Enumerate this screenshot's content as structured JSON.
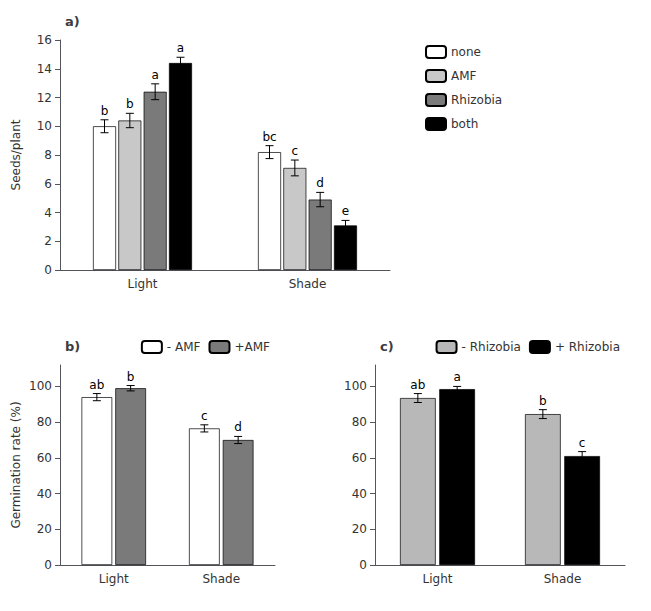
{
  "chart_data": [
    {
      "type": "bar",
      "title": "a)",
      "categories": [
        "Light",
        "Shade"
      ],
      "ylabel": "Seeds/plant",
      "ylim": [
        0,
        16
      ],
      "yticks": [
        0,
        2,
        4,
        6,
        8,
        10,
        12,
        14,
        16
      ],
      "grid": false,
      "legend": "right",
      "series": [
        {
          "name": "none",
          "color": "#ffffff",
          "values": [
            10.0,
            8.2
          ],
          "errors": [
            0.45,
            0.45
          ],
          "letters": [
            "b",
            "bc"
          ]
        },
        {
          "name": "AMF",
          "color": "#c8c8c8",
          "values": [
            10.4,
            7.1
          ],
          "errors": [
            0.5,
            0.55
          ],
          "letters": [
            "b",
            "c"
          ]
        },
        {
          "name": "Rhizobia",
          "color": "#7a7a7a",
          "values": [
            12.4,
            4.9
          ],
          "errors": [
            0.55,
            0.5
          ],
          "letters": [
            "a",
            "d"
          ]
        },
        {
          "name": "both",
          "color": "#000000",
          "values": [
            14.4,
            3.1
          ],
          "errors": [
            0.4,
            0.35
          ],
          "letters": [
            "a",
            "e"
          ]
        }
      ]
    },
    {
      "type": "bar",
      "title": "b)",
      "categories": [
        "Light",
        "Shade"
      ],
      "ylabel": "Germination rate (%)",
      "ylim": [
        0,
        112
      ],
      "yticks": [
        0,
        20,
        40,
        60,
        80,
        100
      ],
      "grid": false,
      "legend": "upper right",
      "series": [
        {
          "name": "- AMF",
          "color": "#ffffff",
          "values": [
            94.0,
            76.5
          ],
          "errors": [
            2.0,
            2.0
          ],
          "letters": [
            "ab",
            "c"
          ]
        },
        {
          "name": "+AMF",
          "color": "#7a7a7a",
          "values": [
            99.0,
            70.0
          ],
          "errors": [
            1.5,
            2.0
          ],
          "letters": [
            "b",
            "d"
          ]
        }
      ]
    },
    {
      "type": "bar",
      "title": "c)",
      "categories": [
        "Light",
        "Shade"
      ],
      "ylim": [
        0,
        112
      ],
      "yticks": [
        0,
        20,
        40,
        60,
        80,
        100
      ],
      "grid": false,
      "legend": "upper right",
      "series": [
        {
          "name": "- Rhizobia",
          "color": "#b8b8b8",
          "values": [
            93.5,
            84.5
          ],
          "errors": [
            2.5,
            2.5
          ],
          "letters": [
            "ab",
            "b"
          ]
        },
        {
          "name": "+ Rhizobia",
          "color": "#000000",
          "values": [
            98.5,
            61.0
          ],
          "errors": [
            1.5,
            2.5
          ],
          "letters": [
            "a",
            "c"
          ]
        }
      ]
    }
  ]
}
